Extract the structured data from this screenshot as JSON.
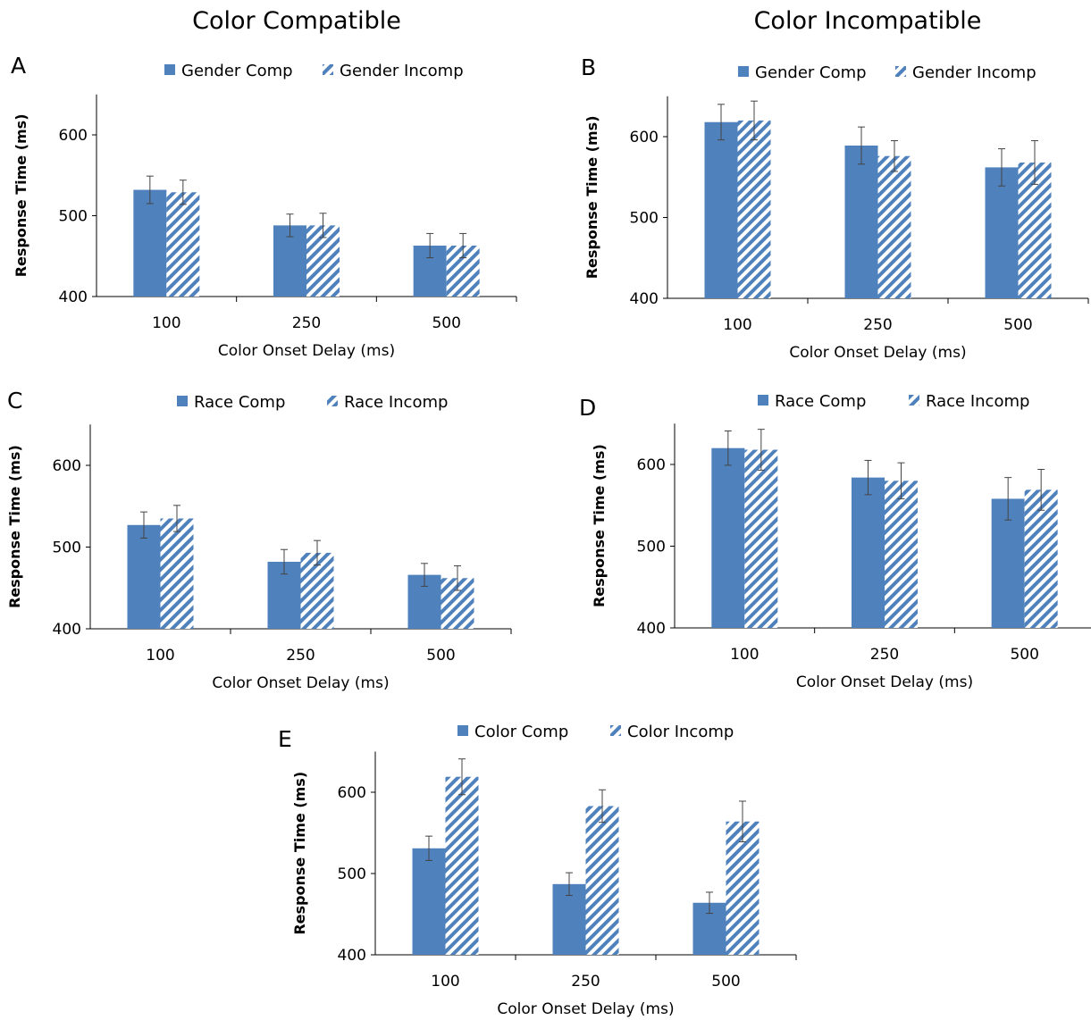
{
  "figure": {
    "column_titles": [
      "Color Compatible",
      "Color Incompatible"
    ]
  },
  "colors": {
    "bar": "#4F81BD",
    "axis": "#000000",
    "error": "#444444"
  },
  "chart_data": [
    {
      "panel": "A",
      "type": "bar",
      "categories": [
        "100",
        "250",
        "500"
      ],
      "series": [
        {
          "name": "Gender Comp",
          "pattern": "solid",
          "values": [
            532,
            488,
            463
          ],
          "errors": [
            17,
            14,
            15
          ]
        },
        {
          "name": "Gender Incomp",
          "pattern": "hatched",
          "values": [
            529,
            488,
            463
          ],
          "errors": [
            15,
            15,
            15
          ]
        }
      ],
      "xlabel": "Color Onset Delay (ms)",
      "ylabel": "Response Time (ms)",
      "ylim": [
        400,
        650
      ],
      "yticks": [
        400,
        500,
        600
      ],
      "legend": "top"
    },
    {
      "panel": "B",
      "type": "bar",
      "categories": [
        "100",
        "250",
        "500"
      ],
      "series": [
        {
          "name": "Gender Comp",
          "pattern": "solid",
          "values": [
            618,
            589,
            562
          ],
          "errors": [
            22,
            23,
            23
          ]
        },
        {
          "name": "Gender Incomp",
          "pattern": "hatched",
          "values": [
            620,
            576,
            568
          ],
          "errors": [
            24,
            19,
            27
          ]
        }
      ],
      "xlabel": "Color Onset Delay (ms)",
      "ylabel": "Response Time (ms)",
      "ylim": [
        400,
        650
      ],
      "yticks": [
        400,
        500,
        600
      ],
      "legend": "top"
    },
    {
      "panel": "C",
      "type": "bar",
      "categories": [
        "100",
        "250",
        "500"
      ],
      "series": [
        {
          "name": "Race Comp",
          "pattern": "solid",
          "values": [
            527,
            482,
            466
          ],
          "errors": [
            16,
            15,
            14
          ]
        },
        {
          "name": "Race Incomp",
          "pattern": "hatched",
          "values": [
            535,
            493,
            462
          ],
          "errors": [
            16,
            15,
            15
          ]
        }
      ],
      "xlabel": "Color Onset Delay (ms)",
      "ylabel": "Response Time (ms)",
      "ylim": [
        400,
        650
      ],
      "yticks": [
        400,
        500,
        600
      ],
      "legend": "top"
    },
    {
      "panel": "D",
      "type": "bar",
      "categories": [
        "100",
        "250",
        "500"
      ],
      "series": [
        {
          "name": "Race Comp",
          "pattern": "solid",
          "values": [
            620,
            584,
            558
          ],
          "errors": [
            21,
            21,
            26
          ]
        },
        {
          "name": "Race Incomp",
          "pattern": "hatched",
          "values": [
            618,
            580,
            569
          ],
          "errors": [
            25,
            22,
            25
          ]
        }
      ],
      "xlabel": "Color Onset Delay (ms)",
      "ylabel": "Response Time (ms)",
      "ylim": [
        400,
        650
      ],
      "yticks": [
        400,
        500,
        600
      ],
      "legend": "top"
    },
    {
      "panel": "E",
      "type": "bar",
      "categories": [
        "100",
        "250",
        "500"
      ],
      "series": [
        {
          "name": "Color Comp",
          "pattern": "solid",
          "values": [
            531,
            487,
            464
          ],
          "errors": [
            15,
            14,
            13
          ]
        },
        {
          "name": "Color Incomp",
          "pattern": "hatched",
          "values": [
            619,
            583,
            564
          ],
          "errors": [
            22,
            20,
            25
          ]
        }
      ],
      "xlabel": "Color Onset Delay (ms)",
      "ylabel": "Response Time (ms)",
      "ylim": [
        400,
        650
      ],
      "yticks": [
        400,
        500,
        600
      ],
      "legend": "top"
    }
  ]
}
